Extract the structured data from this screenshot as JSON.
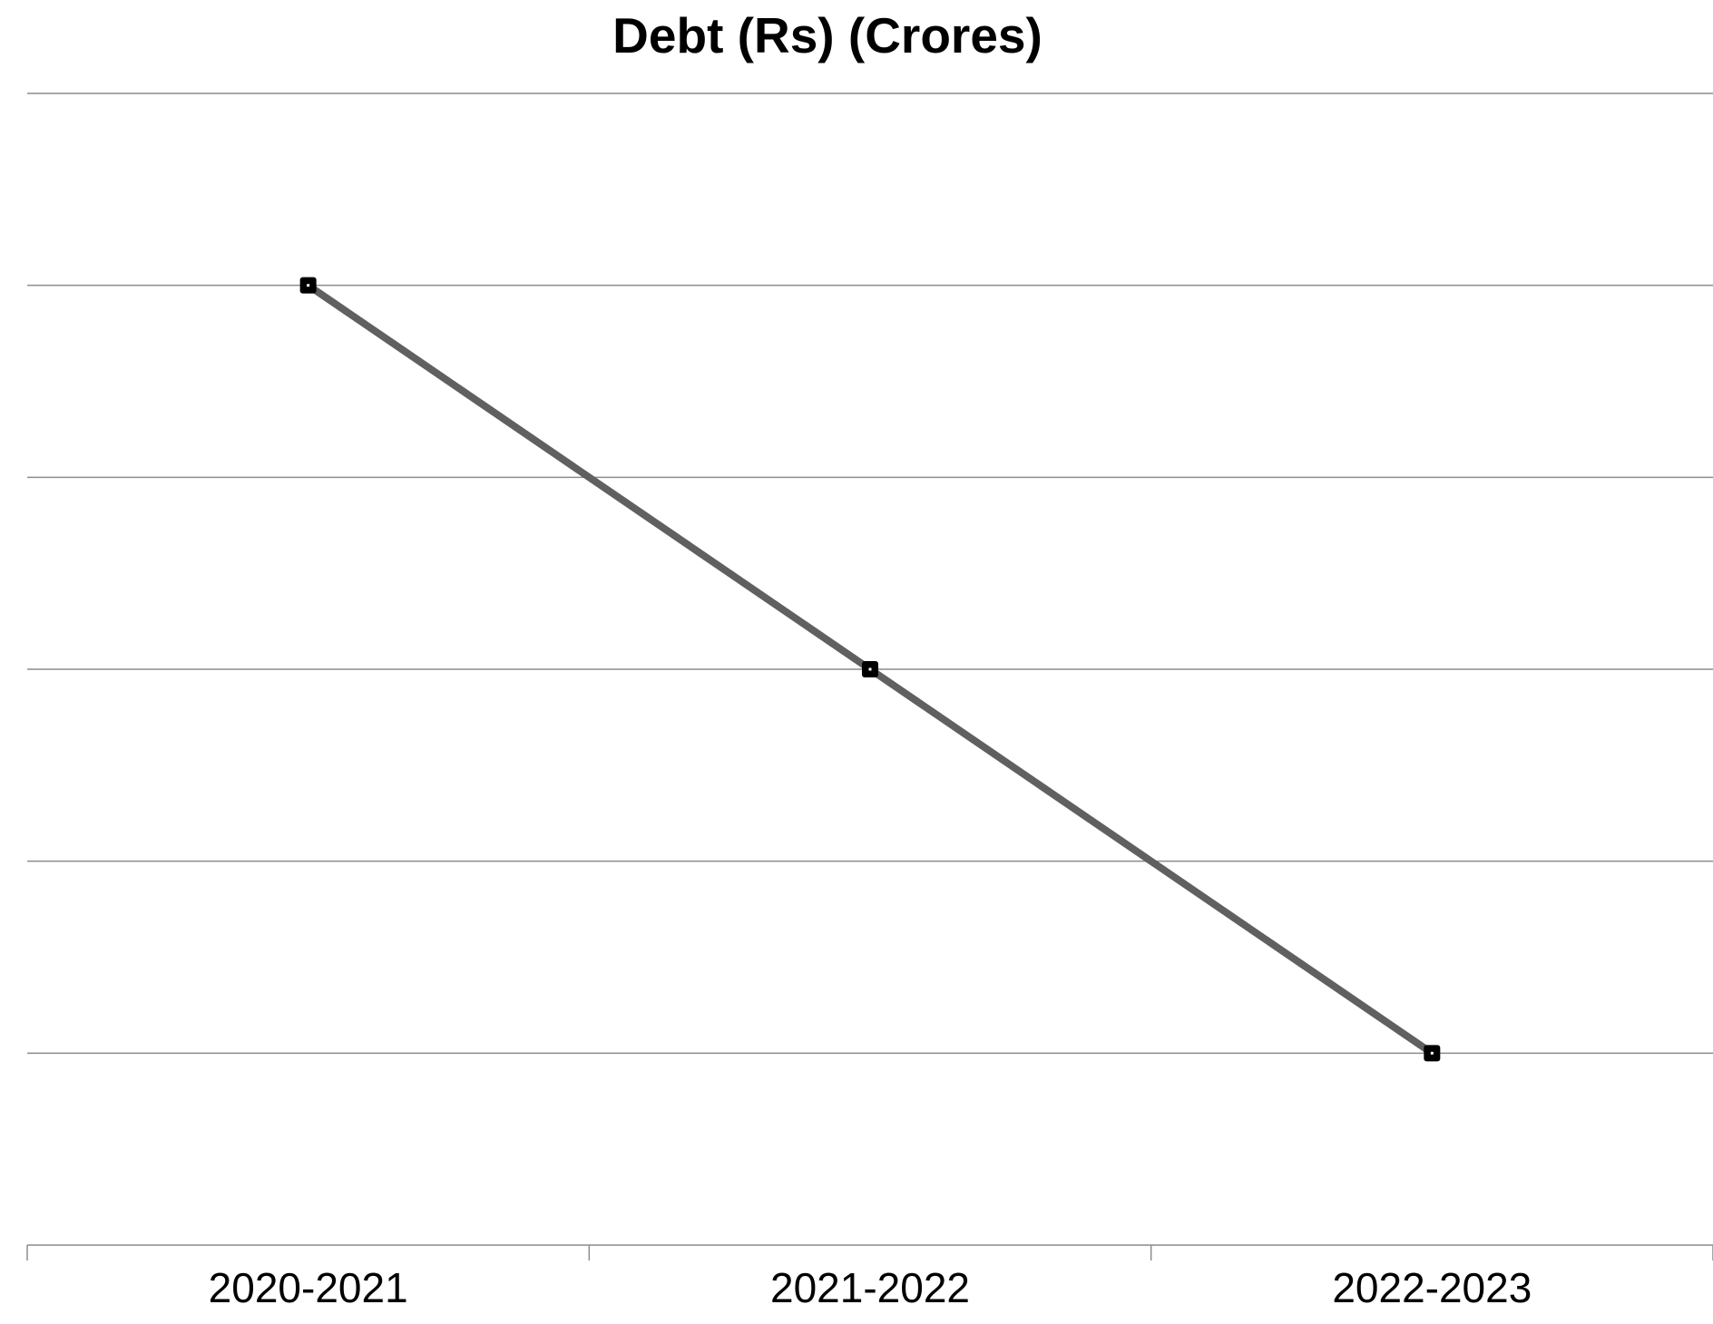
{
  "chart_data": {
    "type": "line",
    "title": "Debt (Rs) (Crores)",
    "xlabel": "",
    "ylabel": "",
    "categories": [
      "2020-2021",
      "2021-2022",
      "2022-2023"
    ],
    "series": [
      {
        "values": [
          5,
          3,
          1
        ]
      }
    ],
    "ylim": [
      0,
      6
    ],
    "y_tick_step": 1,
    "y_tick_labels_visible": false,
    "grid": true,
    "legend": "none",
    "colors": {
      "line": "#606060",
      "marker": "#000000",
      "grid": "#8c8c8c",
      "axis": "#8c8c8c",
      "text": "#000000"
    }
  }
}
